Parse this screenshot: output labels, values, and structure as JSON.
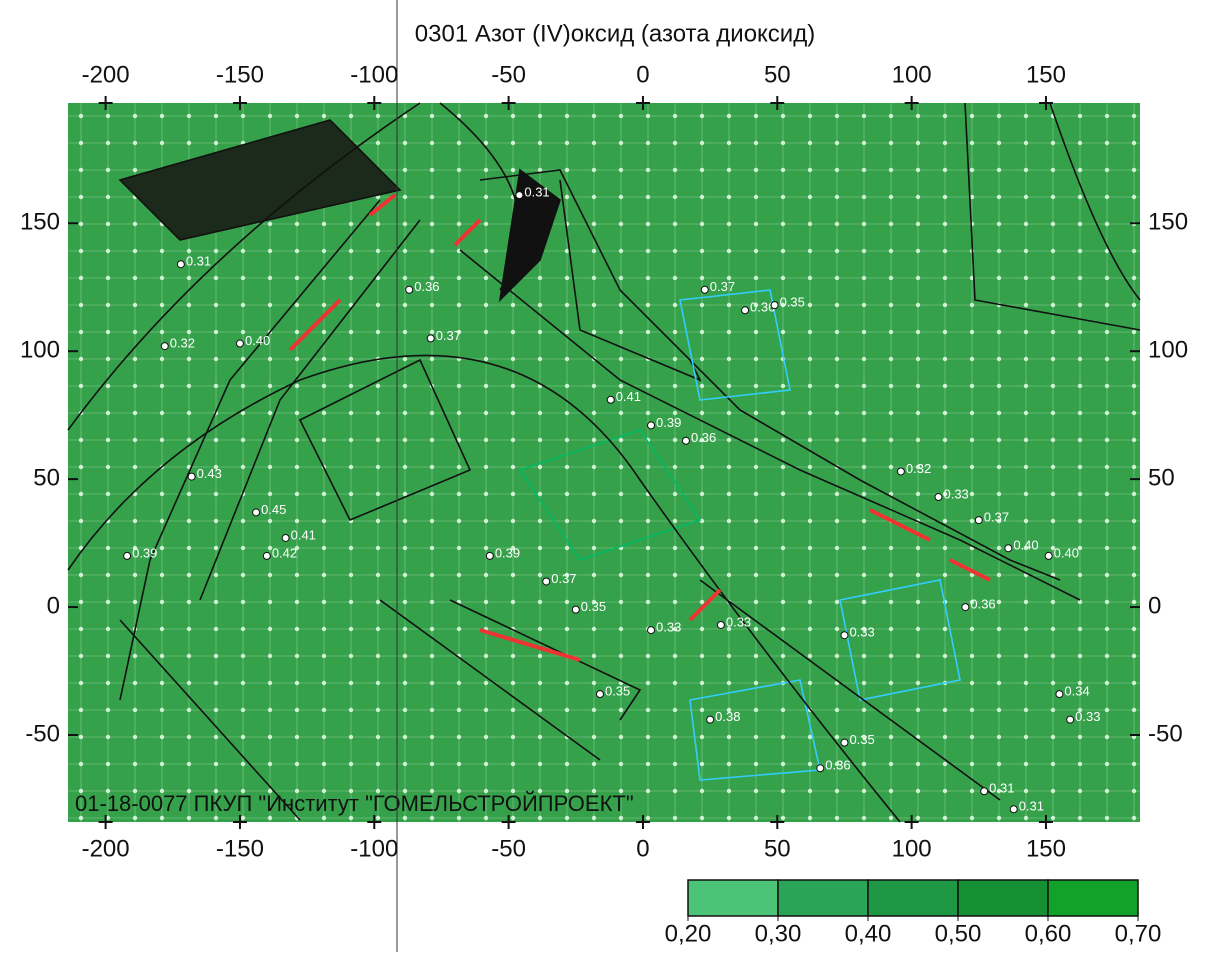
{
  "chart_data": {
    "type": "map",
    "title": "0301 Азот (IV)оксид (азота диоксид)",
    "footer": "01-18-0077 ПКУП \"Институт \"ГОМЕЛЬСТРОЙПРОЕКТ\"",
    "xlim": [
      -214,
      185
    ],
    "ylim": [
      -84,
      197
    ],
    "xticks": [
      -200,
      -150,
      -100,
      -50,
      0,
      50,
      100,
      150
    ],
    "yticks": [
      -50,
      0,
      50,
      100,
      150
    ],
    "background": "#35a24b",
    "points": {
      "x": [
        -172,
        -178,
        -150,
        -87,
        -79,
        -46,
        23,
        38,
        49,
        -12,
        3,
        16,
        -168,
        -144,
        -133,
        -140,
        -192,
        -57,
        -36,
        -25,
        3,
        75,
        120,
        136,
        151,
        110,
        96,
        125,
        155,
        159,
        75,
        66,
        127,
        138,
        25,
        -16,
        29
      ],
      "y": [
        134,
        102,
        103,
        124,
        105,
        161,
        124,
        116,
        118,
        81,
        71,
        65,
        51,
        37,
        27,
        20,
        20,
        20,
        10,
        -1,
        -9,
        -11,
        0,
        23,
        20,
        43,
        53,
        34,
        -34,
        -44,
        -53,
        -63,
        -72,
        -79,
        -44,
        -34,
        -7
      ],
      "values": [
        0.31,
        0.32,
        0.4,
        0.36,
        0.37,
        0.31,
        0.37,
        0.36,
        0.35,
        0.41,
        0.39,
        0.36,
        0.43,
        0.45,
        0.41,
        0.42,
        0.39,
        0.39,
        0.37,
        0.35,
        0.33,
        0.33,
        0.36,
        0.4,
        0.4,
        0.33,
        0.32,
        0.37,
        0.34,
        0.33,
        0.35,
        0.36,
        0.31,
        0.31,
        0.38,
        0.35,
        0.33
      ],
      "value_labels": [
        "0.31",
        "0.32",
        "0.40",
        "0.36",
        "0.37",
        "0.31",
        "0.37",
        "0.36",
        "0.35",
        "0.41",
        "0.39",
        "0.36",
        "0.43",
        "0.45",
        "0.41",
        "0.42",
        "0.39",
        "0.39",
        "0.37",
        "0.35",
        "0.33",
        "0.33",
        "0.36",
        "0.40",
        "0.40",
        "0.33",
        "0.32",
        "0.37",
        "0.34",
        "0.33",
        "0.35",
        "0.36",
        "0.31",
        "0.31",
        "0.38",
        "0.35",
        "0.33"
      ]
    },
    "legend": {
      "ticks": [
        {
          "value": 0.2,
          "label": "0,20"
        },
        {
          "value": 0.3,
          "label": "0,30"
        },
        {
          "value": 0.4,
          "label": "0,40"
        },
        {
          "value": 0.5,
          "label": "0,50"
        },
        {
          "value": 0.6,
          "label": "0,60"
        },
        {
          "value": 0.7,
          "label": "0,70"
        }
      ],
      "colors": [
        "#4cc477",
        "#2aa557",
        "#1f9845",
        "#179034",
        "#12a22a"
      ]
    }
  }
}
